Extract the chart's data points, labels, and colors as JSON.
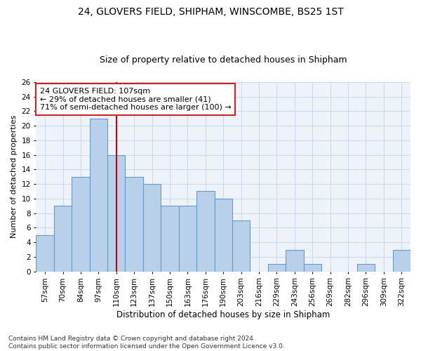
{
  "title1": "24, GLOVERS FIELD, SHIPHAM, WINSCOMBE, BS25 1ST",
  "title2": "Size of property relative to detached houses in Shipham",
  "xlabel": "Distribution of detached houses by size in Shipham",
  "ylabel": "Number of detached properties",
  "categories": [
    "57sqm",
    "70sqm",
    "84sqm",
    "97sqm",
    "110sqm",
    "123sqm",
    "137sqm",
    "150sqm",
    "163sqm",
    "176sqm",
    "190sqm",
    "203sqm",
    "216sqm",
    "229sqm",
    "243sqm",
    "256sqm",
    "269sqm",
    "282sqm",
    "296sqm",
    "309sqm",
    "322sqm"
  ],
  "values": [
    5,
    9,
    13,
    21,
    16,
    13,
    12,
    9,
    9,
    11,
    10,
    7,
    0,
    1,
    3,
    1,
    0,
    0,
    1,
    0,
    3
  ],
  "bar_color": "#b8d0ea",
  "bar_edge_color": "#6699cc",
  "vline_color": "#cc0000",
  "vline_index": 4,
  "annotation_box_text": "24 GLOVERS FIELD: 107sqm\n← 29% of detached houses are smaller (41)\n71% of semi-detached houses are larger (100) →",
  "annotation_box_edge_color": "#cc2222",
  "annotation_box_facecolor": "white",
  "ylim": [
    0,
    26
  ],
  "yticks": [
    0,
    2,
    4,
    6,
    8,
    10,
    12,
    14,
    16,
    18,
    20,
    22,
    24,
    26
  ],
  "grid_color": "#c8d8ee",
  "bg_color": "#eef3fa",
  "footer": "Contains HM Land Registry data © Crown copyright and database right 2024.\nContains public sector information licensed under the Open Government Licence v3.0.",
  "title1_fontsize": 10,
  "title2_fontsize": 9,
  "xlabel_fontsize": 8.5,
  "ylabel_fontsize": 8,
  "tick_fontsize": 7.5,
  "annotation_fontsize": 8,
  "footer_fontsize": 6.5
}
